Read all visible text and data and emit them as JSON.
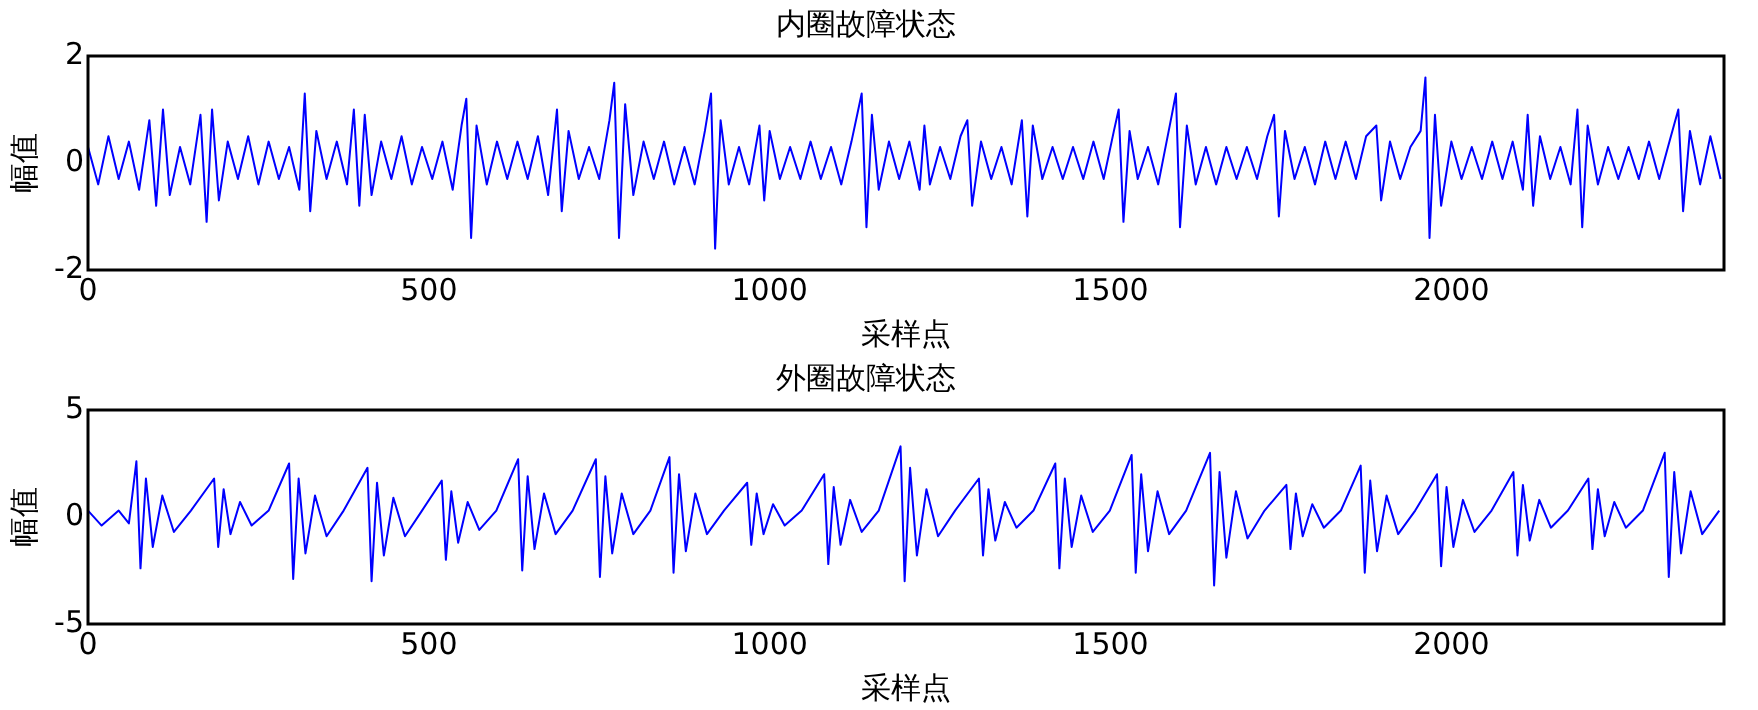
{
  "chart_data": [
    {
      "type": "line",
      "title": "内圈故障状态",
      "xlabel": "采样点",
      "ylabel": "幅值",
      "xlim": [
        0,
        2400
      ],
      "xticks": [
        0,
        500,
        1000,
        1500,
        2000
      ],
      "ylim": [
        -2,
        2
      ],
      "yticks": [
        -2,
        0,
        2
      ],
      "grid": false,
      "legend": false,
      "marker": "none",
      "series": [
        {
          "color": "#0000ff",
          "x": [
            0,
            15,
            30,
            45,
            60,
            75,
            90,
            100,
            110,
            120,
            135,
            150,
            165,
            174,
            182,
            192,
            205,
            220,
            235,
            250,
            265,
            280,
            295,
            310,
            318,
            326,
            335,
            350,
            365,
            380,
            390,
            398,
            406,
            416,
            430,
            445,
            460,
            475,
            490,
            505,
            520,
            535,
            548,
            555,
            562,
            570,
            585,
            600,
            615,
            630,
            645,
            660,
            675,
            688,
            695,
            705,
            720,
            735,
            750,
            765,
            772,
            779,
            788,
            800,
            815,
            830,
            845,
            860,
            875,
            890,
            905,
            914,
            920,
            928,
            940,
            955,
            970,
            985,
            992,
            1000,
            1015,
            1030,
            1045,
            1060,
            1075,
            1090,
            1105,
            1120,
            1135,
            1142,
            1150,
            1160,
            1175,
            1190,
            1205,
            1220,
            1227,
            1235,
            1250,
            1265,
            1280,
            1290,
            1297,
            1310,
            1325,
            1340,
            1355,
            1370,
            1378,
            1386,
            1400,
            1415,
            1430,
            1445,
            1460,
            1475,
            1490,
            1505,
            1512,
            1519,
            1528,
            1540,
            1555,
            1570,
            1590,
            1596,
            1602,
            1612,
            1625,
            1640,
            1655,
            1670,
            1685,
            1700,
            1715,
            1730,
            1740,
            1747,
            1756,
            1770,
            1785,
            1800,
            1815,
            1830,
            1845,
            1860,
            1875,
            1890,
            1897,
            1910,
            1925,
            1940,
            1955,
            1962,
            1968,
            1976,
            1985,
            2000,
            2015,
            2030,
            2045,
            2060,
            2075,
            2090,
            2105,
            2112,
            2120,
            2130,
            2145,
            2160,
            2175,
            2185,
            2192,
            2200,
            2215,
            2230,
            2245,
            2260,
            2275,
            2290,
            2305,
            2320,
            2333,
            2340,
            2350,
            2365,
            2380,
            2395
          ],
          "values": [
            0.3,
            -0.4,
            0.5,
            -0.3,
            0.4,
            -0.5,
            0.8,
            -0.8,
            1.0,
            -0.6,
            0.3,
            -0.4,
            0.9,
            -1.1,
            1.0,
            -0.7,
            0.4,
            -0.3,
            0.5,
            -0.4,
            0.4,
            -0.3,
            0.3,
            -0.5,
            1.3,
            -0.9,
            0.6,
            -0.3,
            0.4,
            -0.4,
            1.0,
            -0.8,
            0.9,
            -0.6,
            0.4,
            -0.3,
            0.5,
            -0.4,
            0.3,
            -0.3,
            0.4,
            -0.5,
            0.7,
            1.2,
            -1.4,
            0.7,
            -0.4,
            0.4,
            -0.3,
            0.4,
            -0.3,
            0.5,
            -0.6,
            1.0,
            -0.9,
            0.6,
            -0.3,
            0.3,
            -0.3,
            0.8,
            1.5,
            -1.4,
            1.1,
            -0.6,
            0.4,
            -0.3,
            0.4,
            -0.4,
            0.3,
            -0.4,
            0.6,
            1.3,
            -1.6,
            0.8,
            -0.4,
            0.3,
            -0.4,
            0.7,
            -0.7,
            0.6,
            -0.3,
            0.3,
            -0.3,
            0.4,
            -0.3,
            0.3,
            -0.4,
            0.4,
            1.3,
            -1.2,
            0.9,
            -0.5,
            0.4,
            -0.3,
            0.4,
            -0.5,
            0.7,
            -0.4,
            0.3,
            -0.3,
            0.5,
            0.8,
            -0.8,
            0.4,
            -0.3,
            0.3,
            -0.4,
            0.8,
            -1.0,
            0.7,
            -0.3,
            0.3,
            -0.3,
            0.3,
            -0.3,
            0.4,
            -0.3,
            0.6,
            1.0,
            -1.1,
            0.6,
            -0.3,
            0.3,
            -0.4,
            0.9,
            1.3,
            -1.2,
            0.7,
            -0.4,
            0.3,
            -0.4,
            0.3,
            -0.3,
            0.3,
            -0.3,
            0.5,
            0.9,
            -1.0,
            0.6,
            -0.3,
            0.3,
            -0.4,
            0.4,
            -0.3,
            0.4,
            -0.3,
            0.5,
            0.7,
            -0.7,
            0.4,
            -0.3,
            0.3,
            0.6,
            1.6,
            -1.4,
            0.9,
            -0.8,
            0.4,
            -0.3,
            0.3,
            -0.3,
            0.4,
            -0.3,
            0.4,
            -0.5,
            0.9,
            -0.8,
            0.5,
            -0.3,
            0.3,
            -0.4,
            1.0,
            -1.2,
            0.7,
            -0.4,
            0.3,
            -0.3,
            0.3,
            -0.3,
            0.4,
            -0.3,
            0.4,
            1.0,
            -0.9,
            0.6,
            -0.4,
            0.5,
            -0.3
          ]
        }
      ]
    },
    {
      "type": "line",
      "title": "外圈故障状态",
      "xlabel": "采样点",
      "ylabel": "幅值",
      "xlim": [
        0,
        2400
      ],
      "xticks": [
        0,
        500,
        1000,
        1500,
        2000
      ],
      "ylim": [
        -5,
        5
      ],
      "yticks": [
        -5,
        0,
        5
      ],
      "grid": false,
      "legend": false,
      "marker": "none",
      "series": [
        {
          "color": "#0000ff",
          "x": [
            0,
            20,
            45,
            60,
            71,
            77,
            85,
            95,
            109,
            126,
            151,
            185,
            191,
            199,
            209,
            223,
            240,
            265,
            295,
            301,
            309,
            319,
            333,
            350,
            375,
            410,
            416,
            424,
            434,
            448,
            465,
            490,
            519,
            525,
            533,
            543,
            557,
            574,
            599,
            631,
            637,
            645,
            655,
            669,
            686,
            711,
            745,
            751,
            759,
            769,
            783,
            800,
            825,
            853,
            859,
            867,
            877,
            891,
            908,
            933,
            967,
            973,
            981,
            991,
            1005,
            1022,
            1047,
            1080,
            1086,
            1094,
            1104,
            1118,
            1135,
            1160,
            1192,
            1198,
            1206,
            1216,
            1230,
            1247,
            1272,
            1307,
            1313,
            1321,
            1331,
            1345,
            1362,
            1387,
            1419,
            1425,
            1433,
            1443,
            1457,
            1474,
            1499,
            1531,
            1537,
            1545,
            1555,
            1569,
            1586,
            1611,
            1646,
            1652,
            1660,
            1670,
            1684,
            1701,
            1726,
            1758,
            1764,
            1772,
            1782,
            1796,
            1813,
            1838,
            1867,
            1873,
            1881,
            1891,
            1905,
            1922,
            1947,
            1979,
            1985,
            1993,
            2003,
            2017,
            2034,
            2059,
            2091,
            2097,
            2105,
            2115,
            2129,
            2146,
            2171,
            2201,
            2207,
            2215,
            2225,
            2239,
            2256,
            2281,
            2313,
            2319,
            2327,
            2337,
            2351,
            2368,
            2393
          ],
          "values": [
            0.3,
            -0.4,
            0.3,
            -0.3,
            2.6,
            -2.4,
            1.8,
            -1.4,
            1.0,
            -0.7,
            0.3,
            1.8,
            -1.4,
            1.3,
            -0.8,
            0.7,
            -0.4,
            0.3,
            2.5,
            -2.9,
            1.8,
            -1.7,
            1.0,
            -0.9,
            0.3,
            2.3,
            -3.0,
            1.6,
            -1.8,
            0.9,
            -0.9,
            0.3,
            1.7,
            -2.0,
            1.2,
            -1.2,
            0.7,
            -0.6,
            0.3,
            2.7,
            -2.5,
            1.9,
            -1.5,
            1.1,
            -0.8,
            0.3,
            2.7,
            -2.8,
            1.9,
            -1.7,
            1.1,
            -0.8,
            0.3,
            2.8,
            -2.6,
            2.0,
            -1.6,
            1.1,
            -0.8,
            0.3,
            1.6,
            -1.3,
            1.1,
            -0.8,
            0.6,
            -0.4,
            0.3,
            2.0,
            -2.2,
            1.4,
            -1.3,
            0.8,
            -0.7,
            0.3,
            3.3,
            -3.0,
            2.3,
            -1.8,
            1.3,
            -0.9,
            0.3,
            1.8,
            -1.8,
            1.3,
            -1.1,
            0.7,
            -0.5,
            0.3,
            2.5,
            -2.4,
            1.8,
            -1.4,
            1.0,
            -0.7,
            0.3,
            2.9,
            -2.6,
            2.0,
            -1.6,
            1.2,
            -0.8,
            0.3,
            3.0,
            -3.2,
            2.1,
            -1.9,
            1.2,
            -1.0,
            0.3,
            1.5,
            -1.5,
            1.1,
            -0.9,
            0.6,
            -0.5,
            0.3,
            2.4,
            -2.6,
            1.7,
            -1.6,
            1.0,
            -0.8,
            0.3,
            2.0,
            -2.3,
            1.4,
            -1.4,
            0.8,
            -0.7,
            0.3,
            2.1,
            -1.8,
            1.5,
            -1.1,
            0.8,
            -0.5,
            0.3,
            1.8,
            -1.5,
            1.3,
            -0.9,
            0.7,
            -0.5,
            0.3,
            3.0,
            -2.8,
            2.1,
            -1.7,
            1.2,
            -0.8,
            0.3
          ]
        }
      ]
    }
  ]
}
